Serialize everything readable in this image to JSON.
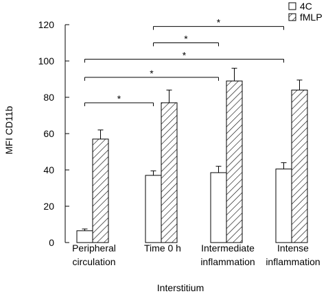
{
  "chart_data": {
    "type": "bar",
    "ylabel": "MFI CD11b",
    "xlabel": "Interstitium",
    "ylim": [
      0,
      120
    ],
    "yticks": [
      0,
      20,
      40,
      60,
      80,
      100,
      120
    ],
    "categories": [
      [
        "Peripheral",
        "circulation"
      ],
      [
        "Time 0 h"
      ],
      [
        "Intermediate",
        "inflammation"
      ],
      [
        "Intense",
        "inflammation"
      ]
    ],
    "series": [
      {
        "name": "4C",
        "fill": "white",
        "values": [
          6.5,
          37,
          38.5,
          40.5
        ],
        "errors": [
          1,
          2.5,
          3.5,
          3.5
        ]
      },
      {
        "name": "fMLP",
        "fill": "hatch",
        "values": [
          57,
          77,
          89,
          84
        ],
        "errors": [
          5,
          7,
          7,
          5.5
        ]
      }
    ],
    "legend_position": "top-right",
    "significance": [
      {
        "from": 0,
        "to": 1,
        "y": 77,
        "label": "*"
      },
      {
        "from": 0,
        "to": 2,
        "y": 91,
        "label": "*"
      },
      {
        "from": 0,
        "to": 3,
        "y": 101,
        "label": "*"
      },
      {
        "from": 1,
        "to": 2,
        "y": 110,
        "label": "*"
      },
      {
        "from": 1,
        "to": 3,
        "y": 119,
        "label": "*"
      }
    ],
    "colors": {
      "stroke": "#000000",
      "background": "#ffffff"
    }
  }
}
